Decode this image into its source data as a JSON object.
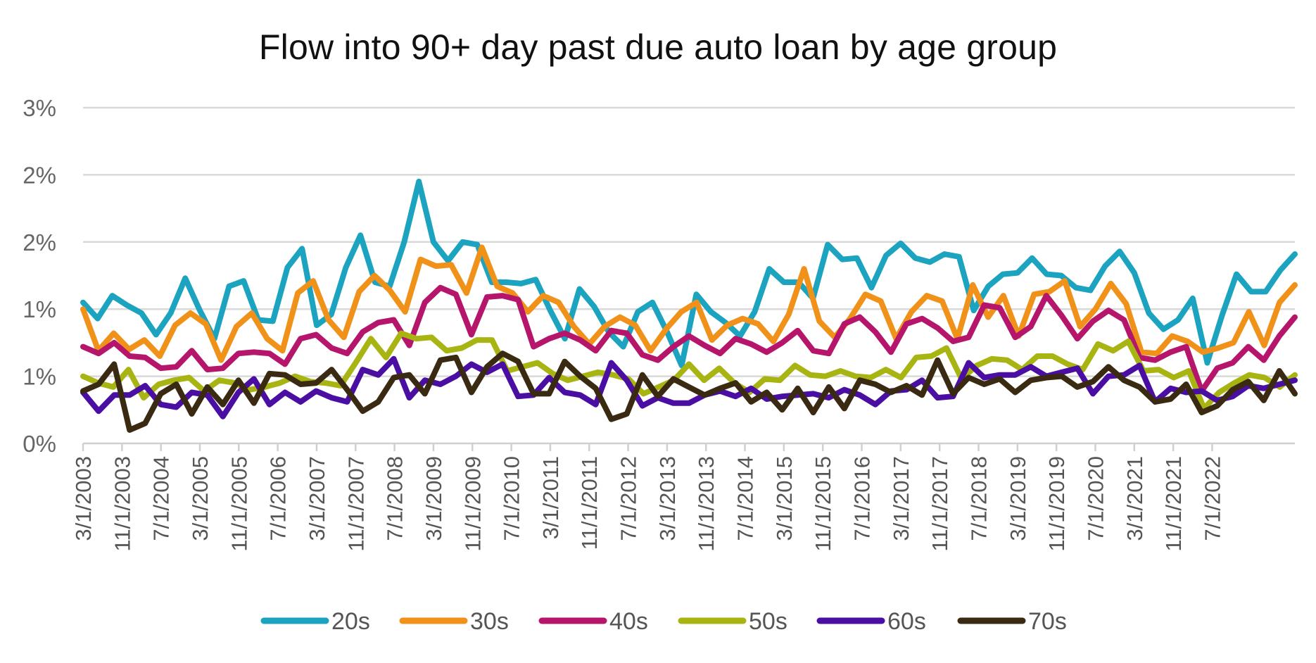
{
  "chart_data": {
    "type": "line",
    "title": "Flow into 90+ day past due auto loan by age group",
    "xlabel": "",
    "ylabel": "",
    "ylim": [
      0,
      2.5
    ],
    "y_tick_values": [
      0,
      0.5,
      1.0,
      1.5,
      2.0,
      2.5
    ],
    "y_tick_labels": [
      "0%",
      "1%",
      "1%",
      "2%",
      "2%",
      "3%"
    ],
    "x_start": "3/1/2003",
    "x_frequency": "quarterly",
    "x_tick_labels": [
      "3/1/2003",
      "11/1/2003",
      "7/1/2004",
      "3/1/2005",
      "11/1/2005",
      "7/1/2006",
      "3/1/2007",
      "11/1/2007",
      "7/1/2008",
      "3/1/2009",
      "11/1/2009",
      "7/1/2010",
      "3/1/2011",
      "11/1/2011",
      "7/1/2012",
      "3/1/2013",
      "11/1/2013",
      "7/1/2014",
      "3/1/2015",
      "11/1/2015",
      "7/1/2016",
      "3/1/2017",
      "11/1/2017",
      "7/1/2018",
      "3/1/2019",
      "11/1/2019",
      "7/1/2020",
      "3/1/2021",
      "11/1/2021",
      "7/1/2022"
    ],
    "legend_position": "bottom",
    "grid": true,
    "series": [
      {
        "name": "20s",
        "color": "#1ba3bf",
        "values": [
          1.05,
          0.93,
          1.1,
          1.03,
          0.97,
          0.81,
          0.97,
          1.23,
          0.99,
          0.78,
          1.17,
          1.21,
          0.92,
          0.91,
          1.31,
          1.45,
          0.88,
          0.96,
          1.31,
          1.55,
          1.2,
          1.17,
          1.5,
          1.95,
          1.5,
          1.36,
          1.5,
          1.48,
          1.2,
          1.2,
          1.19,
          1.22,
          0.99,
          0.78,
          1.15,
          1.02,
          0.83,
          0.72,
          0.98,
          1.05,
          0.83,
          0.58,
          1.11,
          0.98,
          0.9,
          0.8,
          0.98,
          1.3,
          1.2,
          1.2,
          1.08,
          1.48,
          1.37,
          1.38,
          1.16,
          1.4,
          1.49,
          1.38,
          1.35,
          1.41,
          1.39,
          0.99,
          1.17,
          1.26,
          1.27,
          1.38,
          1.26,
          1.25,
          1.16,
          1.14,
          1.32,
          1.43,
          1.27,
          0.97,
          0.85,
          0.92,
          1.08,
          0.6,
          0.95,
          1.26,
          1.13,
          1.13,
          1.29,
          1.41
        ]
      },
      {
        "name": "30s",
        "color": "#f0921a",
        "values": [
          1.0,
          0.69,
          0.82,
          0.7,
          0.77,
          0.65,
          0.88,
          0.97,
          0.89,
          0.62,
          0.87,
          0.97,
          0.78,
          0.69,
          1.12,
          1.21,
          0.92,
          0.79,
          1.13,
          1.25,
          1.14,
          0.98,
          1.37,
          1.32,
          1.33,
          1.12,
          1.46,
          1.17,
          1.12,
          0.98,
          1.1,
          1.05,
          0.87,
          0.74,
          0.87,
          0.94,
          0.88,
          0.69,
          0.85,
          0.98,
          1.05,
          0.77,
          0.88,
          0.93,
          0.89,
          0.76,
          0.96,
          1.3,
          0.91,
          0.79,
          0.93,
          1.11,
          1.06,
          0.78,
          0.98,
          1.1,
          1.06,
          0.78,
          1.18,
          0.94,
          1.1,
          0.8,
          1.11,
          1.13,
          1.21,
          0.87,
          1.0,
          1.19,
          1.04,
          0.68,
          0.67,
          0.8,
          0.76,
          0.68,
          0.71,
          0.75,
          0.98,
          0.73,
          1.05,
          1.18
        ]
      },
      {
        "name": "40s",
        "color": "#b5166b",
        "values": [
          0.72,
          0.67,
          0.75,
          0.65,
          0.64,
          0.56,
          0.57,
          0.69,
          0.55,
          0.56,
          0.67,
          0.68,
          0.67,
          0.59,
          0.78,
          0.81,
          0.71,
          0.67,
          0.83,
          0.9,
          0.92,
          0.73,
          1.05,
          1.16,
          1.11,
          0.81,
          1.09,
          1.1,
          1.07,
          0.72,
          0.78,
          0.82,
          0.77,
          0.69,
          0.84,
          0.82,
          0.66,
          0.62,
          0.72,
          0.8,
          0.73,
          0.67,
          0.78,
          0.74,
          0.68,
          0.75,
          0.84,
          0.69,
          0.67,
          0.89,
          0.94,
          0.83,
          0.68,
          0.89,
          0.93,
          0.86,
          0.76,
          0.79,
          1.03,
          1.01,
          0.79,
          0.87,
          1.1,
          0.95,
          0.78,
          0.91,
          0.99,
          0.92,
          0.64,
          0.62,
          0.68,
          0.72,
          0.39,
          0.56,
          0.6,
          0.72,
          0.62,
          0.8,
          0.94
        ]
      },
      {
        "name": "50s",
        "color": "#a8b412",
        "values": [
          0.5,
          0.45,
          0.42,
          0.55,
          0.34,
          0.44,
          0.47,
          0.49,
          0.39,
          0.47,
          0.45,
          0.4,
          0.42,
          0.45,
          0.5,
          0.46,
          0.45,
          0.43,
          0.6,
          0.78,
          0.64,
          0.82,
          0.78,
          0.79,
          0.69,
          0.71,
          0.77,
          0.77,
          0.54,
          0.57,
          0.6,
          0.52,
          0.47,
          0.5,
          0.53,
          0.51,
          0.48,
          0.37,
          0.42,
          0.47,
          0.59,
          0.47,
          0.56,
          0.45,
          0.38,
          0.48,
          0.47,
          0.58,
          0.51,
          0.5,
          0.54,
          0.5,
          0.49,
          0.55,
          0.49,
          0.64,
          0.65,
          0.71,
          0.48,
          0.58,
          0.63,
          0.62,
          0.55,
          0.65,
          0.65,
          0.59,
          0.55,
          0.74,
          0.69,
          0.76,
          0.54,
          0.55,
          0.49,
          0.54,
          0.26,
          0.38,
          0.45,
          0.51,
          0.49,
          0.42,
          0.51
        ]
      },
      {
        "name": "60s",
        "color": "#4a0ea2",
        "values": [
          0.38,
          0.24,
          0.36,
          0.36,
          0.43,
          0.29,
          0.27,
          0.38,
          0.36,
          0.2,
          0.38,
          0.48,
          0.29,
          0.38,
          0.31,
          0.39,
          0.34,
          0.31,
          0.55,
          0.51,
          0.63,
          0.34,
          0.47,
          0.44,
          0.5,
          0.59,
          0.53,
          0.59,
          0.35,
          0.36,
          0.49,
          0.38,
          0.36,
          0.29,
          0.6,
          0.47,
          0.28,
          0.34,
          0.3,
          0.3,
          0.36,
          0.39,
          0.35,
          0.41,
          0.33,
          0.35,
          0.36,
          0.37,
          0.34,
          0.4,
          0.36,
          0.29,
          0.39,
          0.4,
          0.47,
          0.34,
          0.35,
          0.6,
          0.49,
          0.51,
          0.51,
          0.57,
          0.5,
          0.53,
          0.56,
          0.37,
          0.5,
          0.51,
          0.58,
          0.31,
          0.41,
          0.38,
          0.39,
          0.32,
          0.35,
          0.43,
          0.41,
          0.44,
          0.47
        ]
      },
      {
        "name": "70s",
        "color": "#3b2a12",
        "values": [
          0.39,
          0.44,
          0.59,
          0.1,
          0.15,
          0.37,
          0.44,
          0.22,
          0.42,
          0.29,
          0.47,
          0.3,
          0.52,
          0.51,
          0.44,
          0.45,
          0.55,
          0.4,
          0.24,
          0.31,
          0.49,
          0.51,
          0.37,
          0.62,
          0.64,
          0.38,
          0.57,
          0.67,
          0.61,
          0.37,
          0.37,
          0.61,
          0.5,
          0.41,
          0.18,
          0.22,
          0.51,
          0.35,
          0.48,
          0.42,
          0.36,
          0.41,
          0.45,
          0.31,
          0.38,
          0.25,
          0.41,
          0.23,
          0.42,
          0.26,
          0.47,
          0.44,
          0.38,
          0.43,
          0.36,
          0.62,
          0.37,
          0.49,
          0.44,
          0.48,
          0.38,
          0.47,
          0.49,
          0.5,
          0.42,
          0.46,
          0.57,
          0.47,
          0.42,
          0.31,
          0.33,
          0.44,
          0.23,
          0.28,
          0.4,
          0.46,
          0.32,
          0.54,
          0.37
        ]
      }
    ]
  }
}
